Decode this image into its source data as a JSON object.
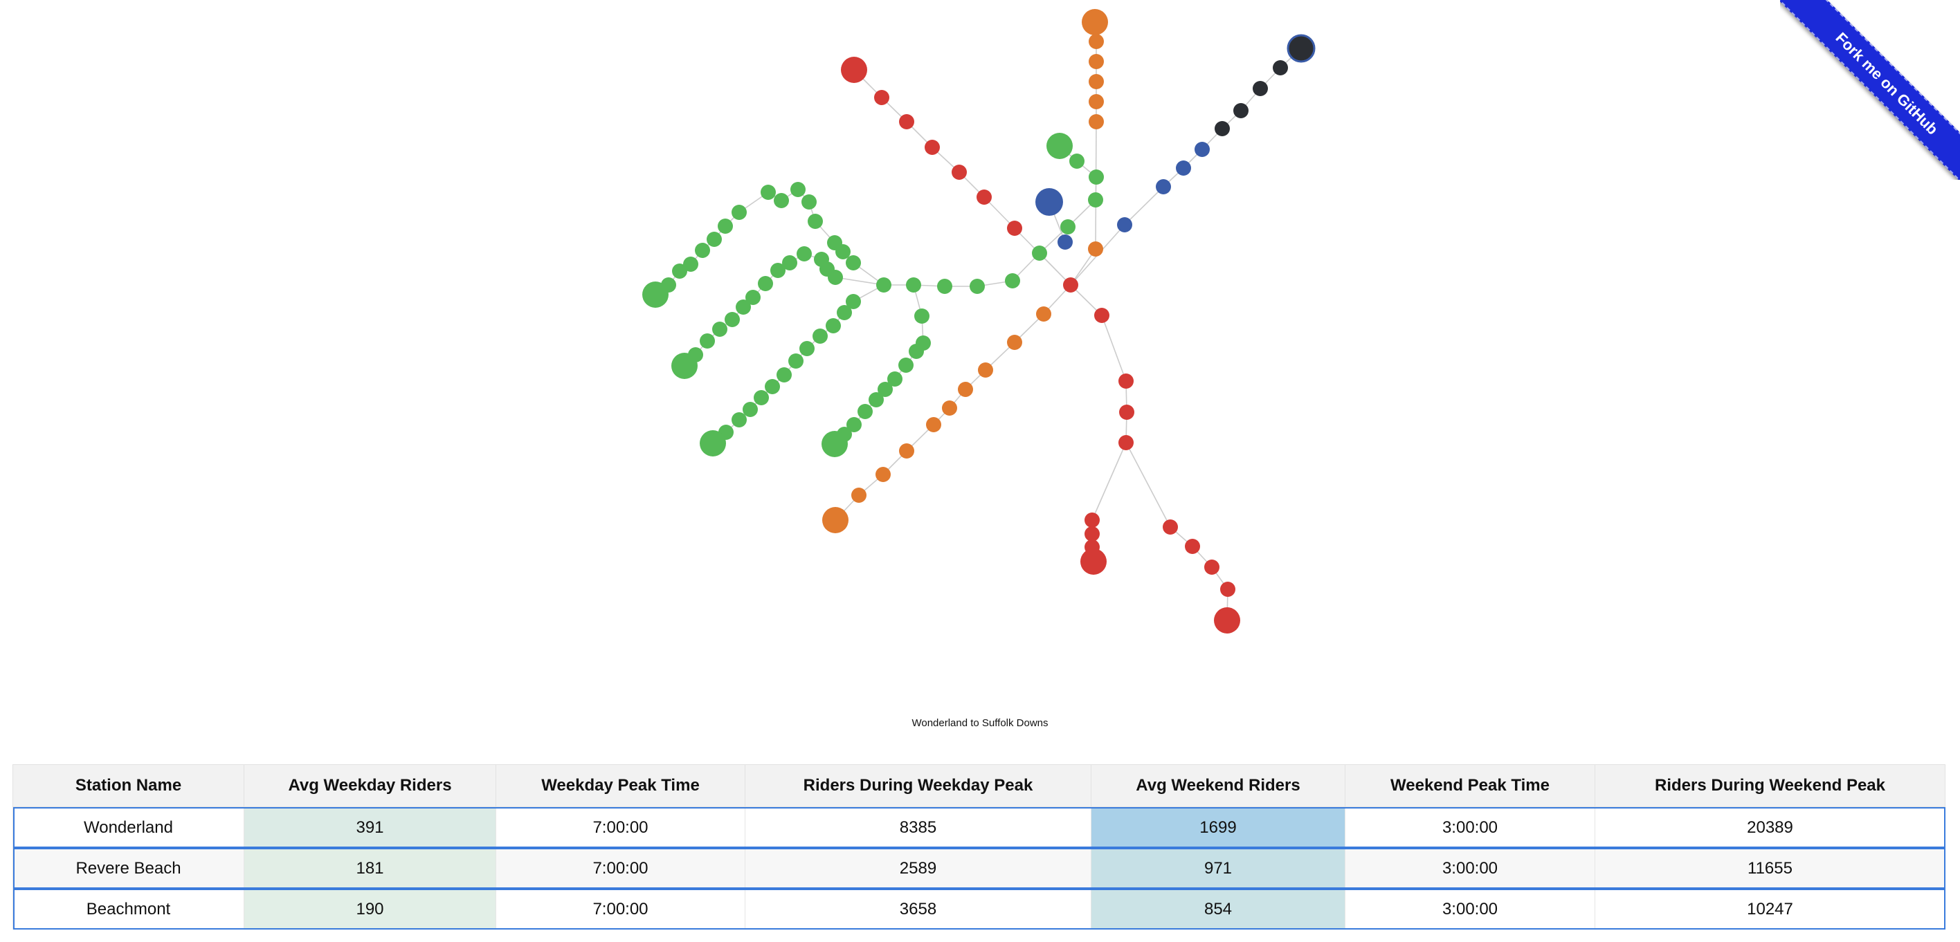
{
  "colors": {
    "red": "#d43a35",
    "orange": "#e07a2e",
    "green": "#55b956",
    "blue": "#3a5ca8",
    "black": "#2b2e33",
    "link": "#cccccc",
    "ribbon": "#1b2ad8",
    "row_outline": "#3a7bdc"
  },
  "ribbon": {
    "label": "Fork me on GitHub"
  },
  "map": {
    "caption": "Wonderland to Suffolk Downs"
  },
  "table": {
    "headers": [
      "Station Name",
      "Avg Weekday Riders",
      "Weekday Peak Time",
      "Riders During Weekday Peak",
      "Avg Weekend Riders",
      "Weekend Peak Time",
      "Riders During Weekend Peak"
    ],
    "rows": [
      {
        "name": "Wonderland",
        "avg_weekday": "391",
        "weekday_peak_time": "7:00:00",
        "weekday_peak_riders": "8385",
        "avg_weekend": "1699",
        "weekend_peak_time": "3:00:00",
        "weekend_peak_riders": "20389",
        "weekday_fill": "#dcebe6",
        "weekend_fill": "#a9d0e8"
      },
      {
        "name": "Revere Beach",
        "avg_weekday": "181",
        "weekday_peak_time": "7:00:00",
        "weekday_peak_riders": "2589",
        "avg_weekend": "971",
        "weekend_peak_time": "3:00:00",
        "weekend_peak_riders": "11655",
        "weekday_fill": "#e2eee6",
        "weekend_fill": "#c6e0e6"
      },
      {
        "name": "Beachmont",
        "avg_weekday": "190",
        "weekday_peak_time": "7:00:00",
        "weekday_peak_riders": "3658",
        "avg_weekend": "854",
        "weekend_peak_time": "3:00:00",
        "weekend_peak_riders": "10247",
        "weekday_fill": "#e2efe7",
        "weekend_fill": "#cbe3e6"
      }
    ]
  }
}
